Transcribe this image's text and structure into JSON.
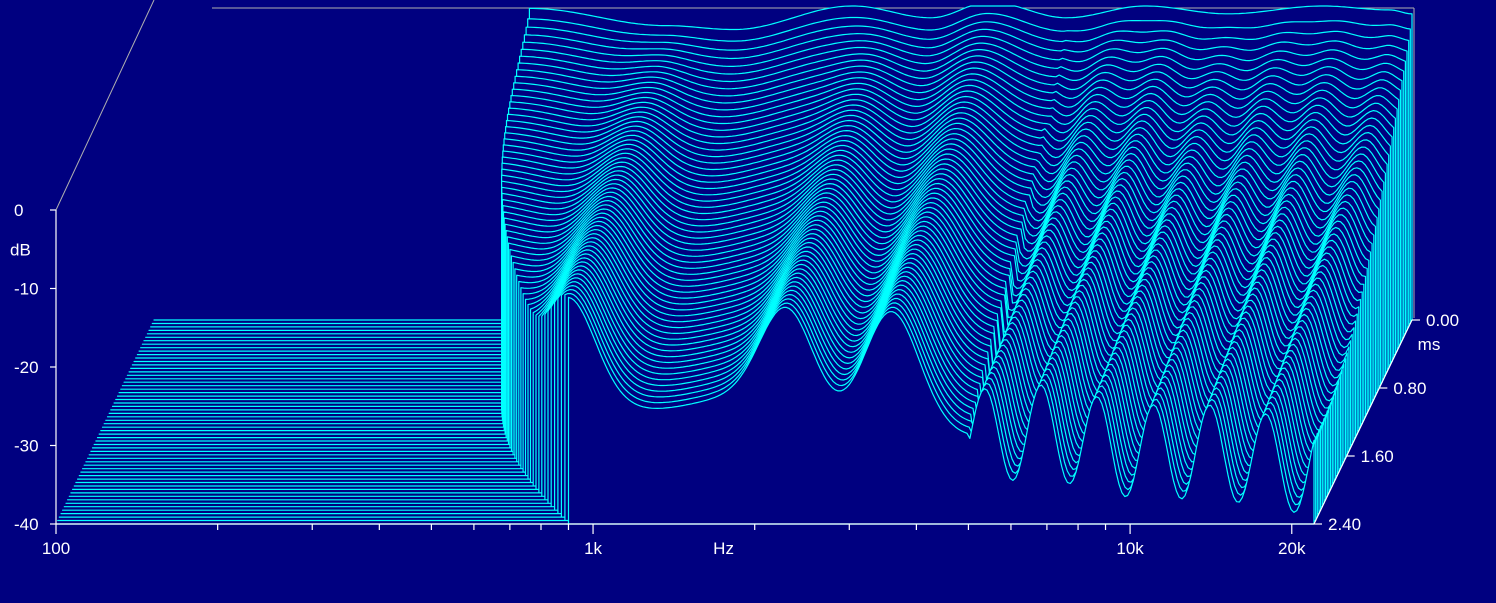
{
  "chart_data": {
    "type": "waterfall",
    "colors": {
      "background": "#000080",
      "trace": "#00ffff",
      "axis": "#ffffff",
      "frame": "#b0b0b0"
    },
    "x_axis": {
      "label": "Hz",
      "scale": "log",
      "range": [
        100,
        22000
      ],
      "tick_labels": [
        {
          "value": 100,
          "text": "100"
        },
        {
          "value": 1000,
          "text": "1k"
        },
        {
          "value": 10000,
          "text": "10k"
        },
        {
          "value": 20000,
          "text": "20k"
        }
      ],
      "minor_ticks": [
        200,
        300,
        400,
        500,
        600,
        700,
        800,
        900,
        2000,
        3000,
        4000,
        5000,
        6000,
        7000,
        8000,
        9000
      ]
    },
    "y_axis": {
      "label": "dB",
      "range": [
        -40,
        0
      ],
      "tick_labels": [
        {
          "value": 0,
          "text": "0"
        },
        {
          "value": -10,
          "text": "-10"
        },
        {
          "value": -20,
          "text": "-20"
        },
        {
          "value": -30,
          "text": "-30"
        },
        {
          "value": -40,
          "text": "-40"
        }
      ]
    },
    "z_axis": {
      "label": "ms",
      "range": [
        0,
        2.4
      ],
      "tick_labels": [
        {
          "value": 0,
          "text": "0.00"
        },
        {
          "value": 0.8,
          "text": "0.80"
        },
        {
          "value": 1.6,
          "text": "1.60"
        },
        {
          "value": 2.4,
          "text": "2.40"
        }
      ]
    },
    "slice_count": 60,
    "gate_start_hz": 500,
    "first_slice_nodes": [
      {
        "f": 500,
        "db": -0.3
      },
      {
        "f": 900,
        "db": -2.5
      },
      {
        "f": 1200,
        "db": -3
      },
      {
        "f": 2000,
        "db": 0
      },
      {
        "f": 2800,
        "db": -1.5
      },
      {
        "f": 3600,
        "db": 0.5
      },
      {
        "f": 5000,
        "db": -1.5
      },
      {
        "f": 7000,
        "db": 0
      },
      {
        "f": 10000,
        "db": -1
      },
      {
        "f": 15000,
        "db": 0
      },
      {
        "f": 20000,
        "db": -0.5
      },
      {
        "f": 22000,
        "db": -1
      }
    ],
    "resonances": [
      {
        "f": 900,
        "db": -15
      },
      {
        "f": 2300,
        "db": -17
      },
      {
        "f": 3600,
        "db": -20
      }
    ]
  }
}
